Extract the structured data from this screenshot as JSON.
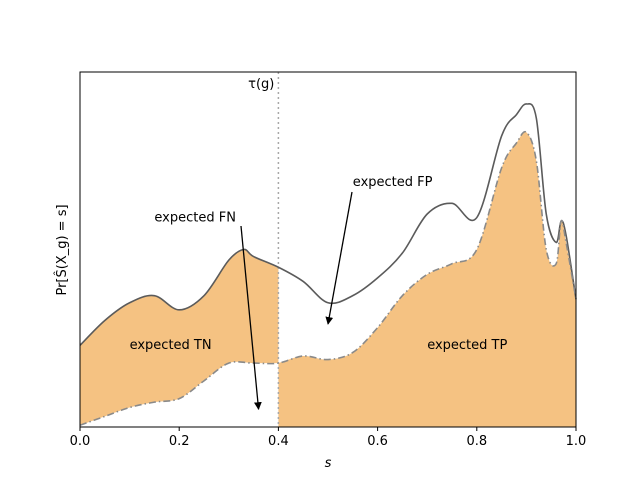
{
  "chart_data": {
    "type": "area",
    "xlabel": "s",
    "ylabel": "Pr[Ŝ(X_g) = s]",
    "xlim": [
      0,
      1
    ],
    "ylim": [
      0,
      1.0
    ],
    "x_ticks": [
      "0.0",
      "0.2",
      "0.4",
      "0.6",
      "0.8",
      "1.0"
    ],
    "x_tick_values": [
      0.0,
      0.2,
      0.4,
      0.6,
      0.8,
      1.0
    ],
    "y_ticks_shown": false,
    "threshold": {
      "x": 0.4,
      "label": "τ(g)"
    },
    "series": [
      {
        "x": [
          0.0,
          0.05,
          0.1,
          0.15,
          0.2,
          0.25,
          0.3,
          0.33,
          0.35,
          0.4,
          0.45,
          0.5,
          0.55,
          0.6,
          0.65,
          0.7,
          0.75,
          0.8,
          0.85,
          0.88,
          0.9,
          0.92,
          0.94,
          0.96,
          0.97,
          0.98,
          1.0
        ],
        "y": [
          0.23,
          0.3,
          0.35,
          0.37,
          0.33,
          0.37,
          0.47,
          0.5,
          0.48,
          0.45,
          0.41,
          0.35,
          0.37,
          0.42,
          0.49,
          0.6,
          0.63,
          0.59,
          0.82,
          0.88,
          0.91,
          0.87,
          0.6,
          0.52,
          0.58,
          0.54,
          0.36
        ]
      },
      {
        "x": [
          0.0,
          0.05,
          0.1,
          0.15,
          0.2,
          0.25,
          0.3,
          0.35,
          0.4,
          0.45,
          0.5,
          0.55,
          0.6,
          0.65,
          0.7,
          0.75,
          0.8,
          0.85,
          0.88,
          0.9,
          0.92,
          0.94,
          0.96,
          0.97,
          0.98,
          1.0
        ],
        "y": [
          0.005,
          0.03,
          0.055,
          0.07,
          0.08,
          0.13,
          0.18,
          0.18,
          0.18,
          0.2,
          0.19,
          0.21,
          0.28,
          0.37,
          0.43,
          0.46,
          0.5,
          0.73,
          0.8,
          0.83,
          0.75,
          0.5,
          0.46,
          0.58,
          0.52,
          0.36
        ]
      }
    ],
    "annotations": [
      {
        "text": "expected FN",
        "xy": [
          0.36,
          0.05
        ],
        "xytext": [
          0.15,
          0.59
        ]
      },
      {
        "text": "expected FP",
        "xy": [
          0.5,
          0.29
        ],
        "xytext": [
          0.55,
          0.69
        ]
      },
      {
        "text": "expected TN",
        "xy": [
          0.1,
          0.22
        ]
      },
      {
        "text": "expected TP",
        "xy": [
          0.7,
          0.22
        ]
      }
    ],
    "colors": {
      "fill": "#f5c282",
      "line": "#5b5b5b",
      "dashdot_line": "#8a8a8a",
      "threshold": "#a8a8a8"
    }
  }
}
